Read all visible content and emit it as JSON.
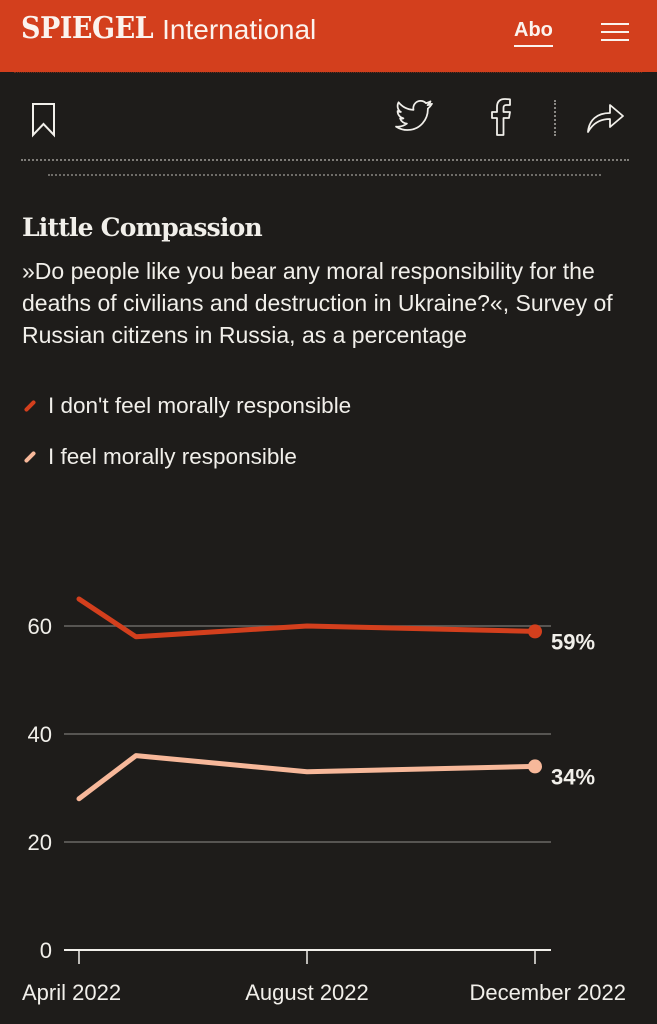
{
  "header": {
    "brand": "SPIEGEL",
    "section": "International",
    "subscribe_label": "Abo",
    "brand_color": "#d33f1d"
  },
  "toolbar": {
    "icons": [
      "bookmark-icon",
      "twitter-icon",
      "facebook-icon",
      "share-icon"
    ]
  },
  "chart_data": {
    "type": "line",
    "title": "Little Compassion",
    "subtitle": "»Do people like you bear any moral responsibility for the deaths of civilians and destruction in Ukraine?«, Survey of Russian citizens in Russia, as a percentage",
    "x": [
      "2022-04",
      "2022-05",
      "2022-08",
      "2022-12"
    ],
    "x_ticks": [
      "April 2022",
      "August 2022",
      "December 2022"
    ],
    "x_tick_positions": [
      "2022-04",
      "2022-08",
      "2022-12"
    ],
    "y_ticks": [
      "0",
      "20",
      "40",
      "60"
    ],
    "ylim": [
      0,
      65
    ],
    "grid": true,
    "legend_placement": "top-left",
    "series": [
      {
        "name": "I don't feel morally responsible",
        "color": "#d33f1d",
        "values": [
          65,
          58,
          60,
          59
        ],
        "end_label": "59%"
      },
      {
        "name": "I feel morally responsible",
        "color": "#f7b89a",
        "values": [
          28,
          36,
          33,
          34
        ],
        "end_label": "34%"
      }
    ]
  }
}
